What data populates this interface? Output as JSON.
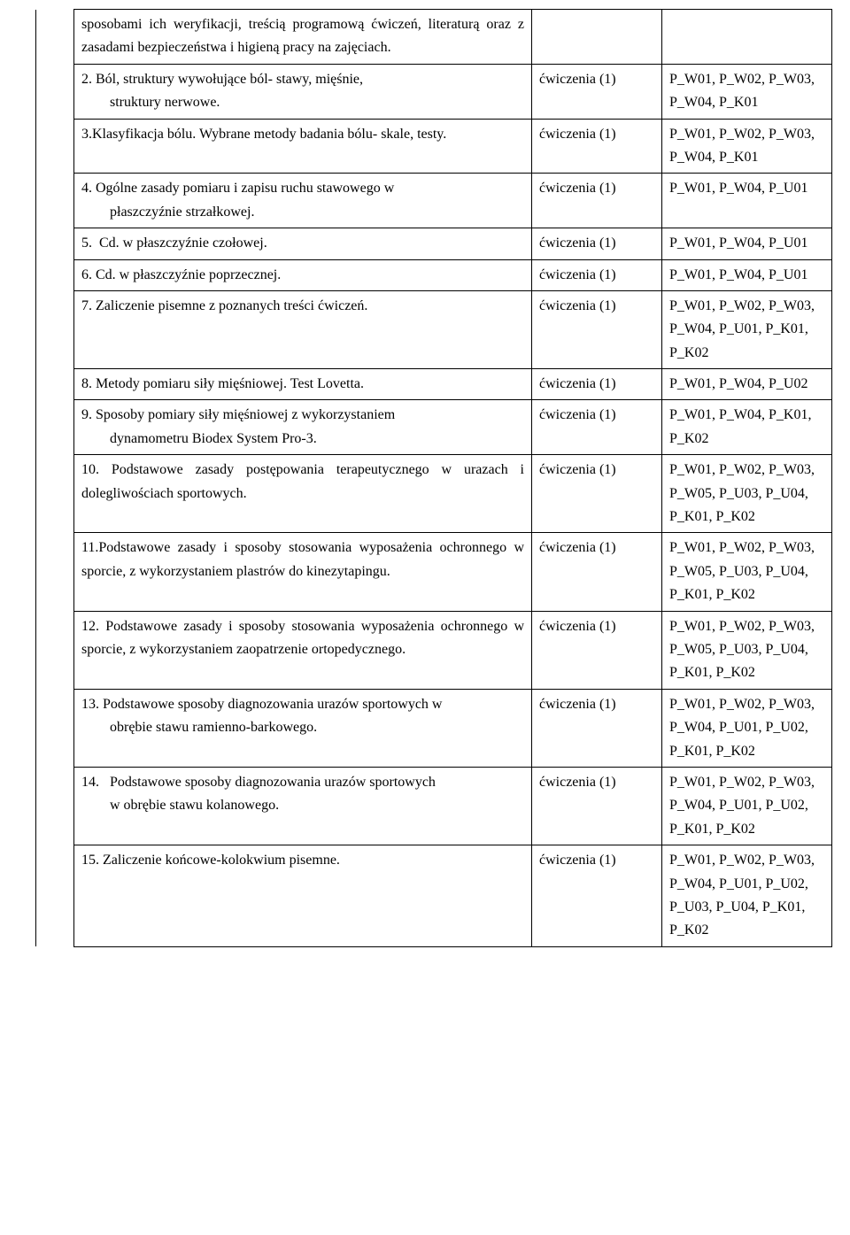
{
  "rows": [
    {
      "desc_html": "sposobami ich weryfikacji, treścią programową ćwiczeń, literaturą oraz z zasadami bezpieczeństwa i higieną pracy na zajęciach.",
      "form": "",
      "outcomes": ""
    },
    {
      "desc_html": "2. Ból, struktury wywołujące ból- stawy, mięśnie,<span class=\"indent\">struktury nerwowe.</span>",
      "form": "ćwiczenia (1)",
      "outcomes": "P_W01, P_W02, P_W03, P_W04, P_K01"
    },
    {
      "desc_html": "3.Klasyfikacja bólu. Wybrane metody badania bólu- skale, testy.",
      "form": "ćwiczenia (1)",
      "outcomes": "P_W01, P_W02, P_W03, P_W04, P_K01"
    },
    {
      "desc_html": "4. Ogólne zasady pomiaru i zapisu ruchu stawowego w<span class=\"indent\">płaszczyźnie strzałkowej.</span>",
      "form": "ćwiczenia (1)",
      "outcomes": "P_W01, P_W04, P_U01"
    },
    {
      "desc_html": "5.&nbsp;&nbsp;Cd. w płaszczyźnie czołowej.",
      "form": "ćwiczenia (1)",
      "outcomes": "P_W01, P_W04, P_U01"
    },
    {
      "desc_html": "6. Cd. w płaszczyźnie poprzecznej.",
      "form": "ćwiczenia (1)",
      "outcomes": "P_W01, P_W04, P_U01"
    },
    {
      "desc_html": "7. Zaliczenie pisemne z poznanych treści ćwiczeń.",
      "form": "ćwiczenia (1)",
      "outcomes": "P_W01, P_W02, P_W03, P_W04, P_U01, P_K01, P_K02"
    },
    {
      "desc_html": "8. Metody pomiaru siły mięśniowej. Test Lovetta.",
      "form": "ćwiczenia (1)",
      "outcomes": "P_W01, P_W04, P_U02"
    },
    {
      "desc_html": "9. Sposoby pomiary siły mięśniowej z wykorzystaniem<span class=\"indent\">dynamometru Biodex System Pro-3.</span>",
      "form": "ćwiczenia (1)",
      "outcomes": "P_W01, P_W04, P_K01, P_K02"
    },
    {
      "desc_html": "10. Podstawowe zasady postępowania terapeutycznego w urazach i dolegliwościach sportowych.",
      "form": "ćwiczenia (1)",
      "outcomes": "P_W01, P_W02, P_W03, P_W05, P_U03, P_U04, P_K01, P_K02"
    },
    {
      "desc_html": "11.Podstawowe zasady i sposoby stosowania wyposażenia ochronnego w sporcie, z wykorzystaniem plastrów do kinezytapingu.",
      "form": "ćwiczenia (1)",
      "outcomes": "P_W01, P_W02, P_W03, P_W05, P_U03, P_U04, P_K01, P_K02"
    },
    {
      "desc_html": "12. Podstawowe zasady i sposoby stosowania wyposażenia ochronnego w sporcie, z wykorzystaniem zaopatrzenie ortopedycznego.",
      "form": "ćwiczenia (1)",
      "outcomes": "P_W01, P_W02, P_W03, P_W05, P_U03, P_U04, P_K01, P_K02"
    },
    {
      "desc_html": "13. Podstawowe sposoby diagnozowania urazów sportowych w<span class=\"indent\">obrębie stawu ramienno-barkowego.</span>",
      "form": "ćwiczenia (1)",
      "outcomes": "P_W01, P_W02, P_W03, P_W04, P_U01, P_U02, P_K01, P_K02"
    },
    {
      "desc_html": "14.&nbsp;&nbsp;&nbsp;Podstawowe sposoby diagnozowania urazów sportowych<span class=\"indent\">w obrębie stawu kolanowego.</span>",
      "form": "ćwiczenia (1)",
      "outcomes": "P_W01, P_W02, P_W03, P_W04, P_U01, P_U02, P_K01, P_K02"
    },
    {
      "desc_html": "15. Zaliczenie końcowe-kolokwium pisemne.",
      "form": "ćwiczenia (1)",
      "outcomes": "P_W01, P_W02, P_W03, P_W04, P_U01, P_U02, P_U03, P_U04, P_K01, P_K02"
    }
  ]
}
